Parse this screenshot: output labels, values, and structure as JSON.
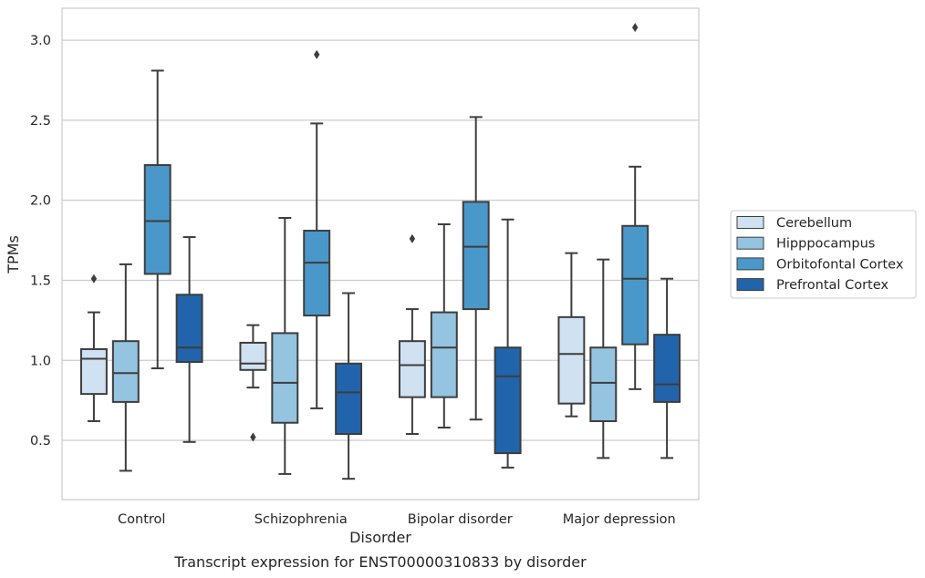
{
  "chart_data": {
    "type": "box",
    "caption": "Transcript expression for ENST00000310833 by disorder",
    "xlabel": "Disorder",
    "ylabel": "TPMs",
    "ylim": [
      0.13,
      3.2
    ],
    "yticks": [
      "0.5",
      "1.0",
      "1.5",
      "2.0",
      "2.5",
      "3.0"
    ],
    "grid": true,
    "legend_position": "right",
    "categories": [
      "Control",
      "Schizophrenia",
      "Bipolar disorder",
      "Major depression"
    ],
    "series": [
      {
        "name": "Cerebellum",
        "color": "#d0e1f2",
        "boxes": [
          {
            "whislo": 0.62,
            "q1": 0.79,
            "med": 1.01,
            "q3": 1.07,
            "whishi": 1.3,
            "fliers": [
              1.51
            ]
          },
          {
            "whislo": 0.83,
            "q1": 0.94,
            "med": 0.98,
            "q3": 1.11,
            "whishi": 1.22,
            "fliers": [
              0.52
            ]
          },
          {
            "whislo": 0.54,
            "q1": 0.77,
            "med": 0.97,
            "q3": 1.12,
            "whishi": 1.32,
            "fliers": [
              1.76
            ]
          },
          {
            "whislo": 0.65,
            "q1": 0.73,
            "med": 1.04,
            "q3": 1.27,
            "whishi": 1.67,
            "fliers": []
          }
        ]
      },
      {
        "name": "Hipppocampus",
        "color": "#94c4df",
        "boxes": [
          {
            "whislo": 0.31,
            "q1": 0.74,
            "med": 0.92,
            "q3": 1.12,
            "whishi": 1.6,
            "fliers": []
          },
          {
            "whislo": 0.29,
            "q1": 0.61,
            "med": 0.86,
            "q3": 1.17,
            "whishi": 1.89,
            "fliers": []
          },
          {
            "whislo": 0.58,
            "q1": 0.77,
            "med": 1.08,
            "q3": 1.3,
            "whishi": 1.85,
            "fliers": []
          },
          {
            "whislo": 0.39,
            "q1": 0.62,
            "med": 0.86,
            "q3": 1.08,
            "whishi": 1.63,
            "fliers": []
          }
        ]
      },
      {
        "name": "Orbitofontal Cortex",
        "color": "#4a98c9",
        "boxes": [
          {
            "whislo": 0.95,
            "q1": 1.54,
            "med": 1.87,
            "q3": 2.22,
            "whishi": 2.81,
            "fliers": []
          },
          {
            "whislo": 0.7,
            "q1": 1.28,
            "med": 1.61,
            "q3": 1.81,
            "whishi": 2.48,
            "fliers": [
              2.91
            ]
          },
          {
            "whislo": 0.63,
            "q1": 1.32,
            "med": 1.71,
            "q3": 1.99,
            "whishi": 2.52,
            "fliers": []
          },
          {
            "whislo": 0.82,
            "q1": 1.1,
            "med": 1.51,
            "q3": 1.84,
            "whishi": 2.21,
            "fliers": [
              3.08
            ]
          }
        ]
      },
      {
        "name": "Prefrontal Cortex",
        "color": "#2164ab",
        "boxes": [
          {
            "whislo": 0.49,
            "q1": 0.99,
            "med": 1.08,
            "q3": 1.41,
            "whishi": 1.77,
            "fliers": []
          },
          {
            "whislo": 0.26,
            "q1": 0.54,
            "med": 0.8,
            "q3": 0.98,
            "whishi": 1.42,
            "fliers": []
          },
          {
            "whislo": 0.33,
            "q1": 0.42,
            "med": 0.9,
            "q3": 1.08,
            "whishi": 1.88,
            "fliers": []
          },
          {
            "whislo": 0.39,
            "q1": 0.74,
            "med": 0.85,
            "q3": 1.16,
            "whishi": 1.51,
            "fliers": []
          }
        ]
      }
    ]
  }
}
